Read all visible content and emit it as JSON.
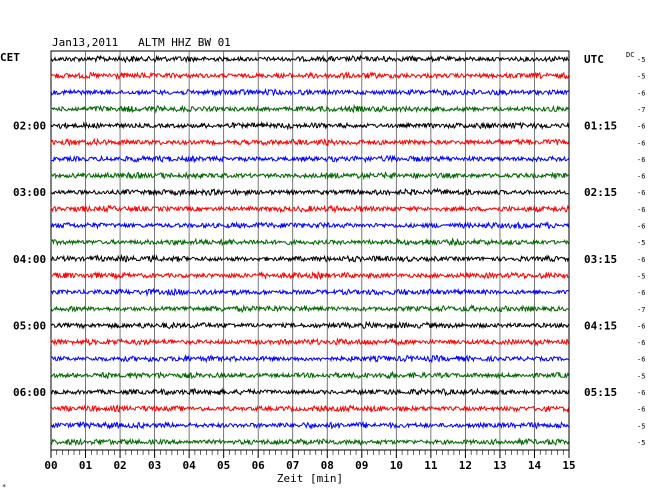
{
  "header": {
    "title": "Jan13,2011   ALTM HHZ BW 01",
    "left_tz": "CET",
    "right_tz": "UTC",
    "dc_label": "DC"
  },
  "chart_data": {
    "type": "line",
    "title": "Jan13,2011   ALTM HHZ BW 01",
    "xlabel": "Zeit [min]",
    "x_ticks": [
      "00",
      "01",
      "02",
      "03",
      "04",
      "05",
      "06",
      "07",
      "08",
      "09",
      "10",
      "11",
      "12",
      "13",
      "14",
      "15"
    ],
    "xlim": [
      0,
      15
    ],
    "left_hour_labels": [
      {
        "trace": 4,
        "label": "02:00"
      },
      {
        "trace": 8,
        "label": "03:00"
      },
      {
        "trace": 12,
        "label": "04:00"
      },
      {
        "trace": 16,
        "label": "05:00"
      },
      {
        "trace": 20,
        "label": "06:00"
      }
    ],
    "right_hour_labels": [
      {
        "trace": 0,
        "label": "UTC"
      },
      {
        "trace": 4,
        "label": "01:15"
      },
      {
        "trace": 8,
        "label": "02:15"
      },
      {
        "trace": 12,
        "label": "03:15"
      },
      {
        "trace": 16,
        "label": "04:15"
      },
      {
        "trace": 20,
        "label": "05:15"
      }
    ],
    "trace_colors": [
      "#000000",
      "#ff0000",
      "#0000ff",
      "#006600"
    ],
    "dc_offsets": [
      "-5",
      "-5",
      "-6",
      "-7",
      "-6",
      "-6",
      "-6",
      "-6",
      "-6",
      "-6",
      "-6",
      "-5",
      "-6",
      "-5",
      "-6",
      "-7",
      "-6",
      "-6",
      "-6",
      "-5",
      "-6",
      "-6",
      "-5",
      "-5"
    ],
    "num_traces": 24,
    "grid": true
  },
  "footnote": "*"
}
